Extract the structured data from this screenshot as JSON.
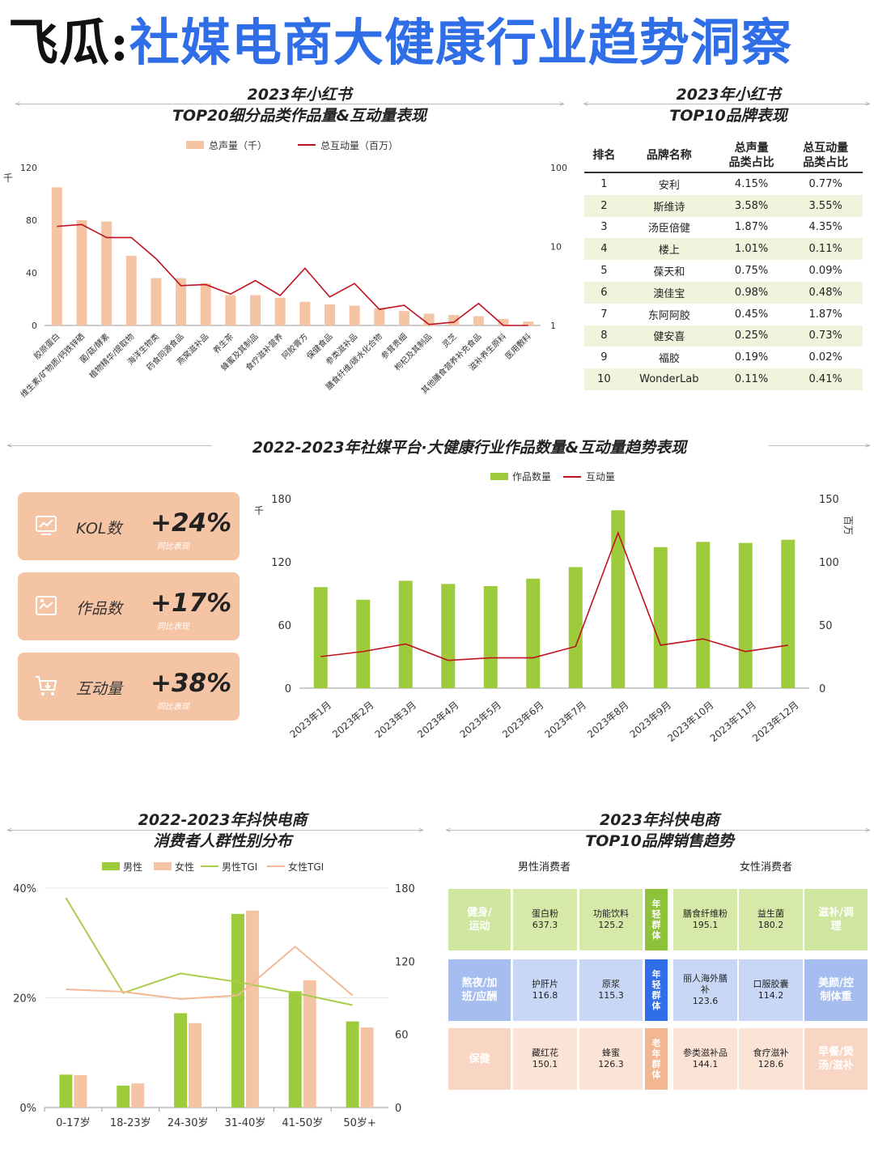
{
  "header": {
    "brand": "飞瓜:",
    "title": "社媒电商大健康行业趋势洞察"
  },
  "sections": {
    "s1": {
      "line1": "2023年小红书",
      "line2": "TOP20细分品类作品量&互动量表现"
    },
    "s2": {
      "line1": "2023年小红书",
      "line2": "TOP10品牌表现"
    },
    "s3": {
      "line1": "2022-2023年社媒平台·大健康行业作品数量&互动量趋势表现"
    },
    "s4": {
      "line1": "2022-2023年抖快电商",
      "line2": "消费者人群性别分布"
    },
    "s5": {
      "line1": "2023年抖快电商",
      "line2": "TOP10品牌销售趋势"
    }
  },
  "chart_data": [
    {
      "type": "bar",
      "legend": [
        "总声量（千）",
        "总互动量（百万）"
      ],
      "ylabel": "千",
      "ylim": [
        0,
        120
      ],
      "y_ticks": [
        0,
        40,
        80,
        120
      ],
      "y2_ticks": [
        "1",
        "10",
        "100"
      ],
      "y2_scale": "log",
      "categories": [
        "胶原蛋白",
        "维生素/矿物质/钙铁锌硒",
        "菌/菇/酵素",
        "植物精华/提取物",
        "海洋生物类",
        "药食同源食品",
        "燕窝滋补品",
        "养生茶",
        "蜂蜜及其制品",
        "食疗滋补营养",
        "阿胶膏方",
        "保健食品",
        "参类滋补品",
        "膳食纤维/碳水化合物",
        "参茸贵细",
        "枸杞及其制品",
        "灵芝",
        "其他膳食营养补充食品",
        "滋补养生原料",
        "医用敷料"
      ],
      "series": [
        {
          "name": "总声量（千）",
          "values": [
            105,
            80,
            79,
            53,
            36,
            36,
            32,
            23,
            23,
            21,
            18,
            16,
            15,
            13,
            11,
            9,
            8,
            7,
            5,
            3
          ]
        },
        {
          "name": "总互动量（百万）",
          "values": [
            18,
            19,
            13,
            13,
            7,
            3.2,
            3.3,
            2.5,
            3.7,
            2.4,
            5.3,
            2.3,
            3.4,
            1.6,
            1.8,
            1.03,
            1.1,
            1.9,
            1,
            1
          ]
        }
      ]
    },
    {
      "type": "table",
      "columns": [
        "排名",
        "品牌名称",
        "总声量\n品类占比",
        "总互动量\n品类占比"
      ],
      "rows": [
        [
          "1",
          "安利",
          "4.15%",
          "0.77%"
        ],
        [
          "2",
          "斯维诗",
          "3.58%",
          "3.55%"
        ],
        [
          "3",
          "汤臣倍健",
          "1.87%",
          "4.35%"
        ],
        [
          "4",
          "楼上",
          "1.01%",
          "0.11%"
        ],
        [
          "5",
          "葆天和",
          "0.75%",
          "0.09%"
        ],
        [
          "6",
          "澳佳宝",
          "0.98%",
          "0.48%"
        ],
        [
          "7",
          "东阿阿胶",
          "0.45%",
          "1.87%"
        ],
        [
          "8",
          "健安喜",
          "0.25%",
          "0.73%"
        ],
        [
          "9",
          "福胶",
          "0.19%",
          "0.02%"
        ],
        [
          "10",
          "WonderLab",
          "0.11%",
          "0.41%"
        ]
      ]
    },
    {
      "type": "bar",
      "legend": [
        "作品数量",
        "互动量"
      ],
      "ylabel": "千",
      "y2label": "百万",
      "ylim": [
        0,
        180
      ],
      "y2lim": [
        0,
        150
      ],
      "y_ticks": [
        0,
        60,
        120,
        180
      ],
      "y2_ticks": [
        0,
        50,
        100,
        150
      ],
      "categories": [
        "2023年1月",
        "2023年2月",
        "2023年3月",
        "2023年4月",
        "2023年5月",
        "2023年6月",
        "2023年7月",
        "2023年8月",
        "2023年9月",
        "2023年10月",
        "2023年11月",
        "2023年12月"
      ],
      "series": [
        {
          "name": "作品数量",
          "values": [
            96,
            84,
            102,
            99,
            97,
            104,
            115,
            169,
            134,
            139,
            138,
            141
          ]
        },
        {
          "name": "互动量",
          "values": [
            25,
            29,
            35,
            22,
            24,
            24,
            33,
            123,
            34,
            39,
            29,
            34
          ]
        }
      ]
    },
    {
      "type": "bar",
      "legend": [
        "男性",
        "女性",
        "男性TGI",
        "女性TGI"
      ],
      "y_ticks": [
        "0%",
        "20%",
        "40%"
      ],
      "ylim": [
        0,
        40
      ],
      "y2lim": [
        0,
        180
      ],
      "y2_ticks": [
        0,
        60,
        120,
        180
      ],
      "categories": [
        "0-17岁",
        "18-23岁",
        "24-30岁",
        "31-40岁",
        "41-50岁",
        "50岁+"
      ],
      "series": [
        {
          "name": "男性",
          "values": [
            6,
            4,
            17.2,
            35.3,
            21.2,
            15.7
          ]
        },
        {
          "name": "女性",
          "values": [
            5.9,
            4.4,
            15.4,
            35.9,
            23.2,
            14.6
          ]
        },
        {
          "name": "男性TGI",
          "values": [
            172,
            94,
            110,
            103,
            94,
            84
          ]
        },
        {
          "name": "女性TGI",
          "values": [
            97,
            95,
            89,
            92,
            132,
            92
          ]
        }
      ]
    }
  ],
  "kpis": [
    {
      "label": "KOL数",
      "value": "+24%",
      "sub": "同比表现"
    },
    {
      "label": "作品数",
      "value": "+17%",
      "sub": "同比表现"
    },
    {
      "label": "互动量",
      "value": "+38%",
      "sub": "同比表现"
    }
  ],
  "sales_grid": {
    "male_header": "男性消费者",
    "female_header": "女性消费者",
    "rows": [
      {
        "left_cat": "健身/\n运动",
        "m1": {
          "name": "蛋白粉",
          "val": "637.3"
        },
        "m2": {
          "name": "功能饮料",
          "val": "125.2"
        },
        "mid": "年\n轻\n群\n体",
        "f1": {
          "name": "膳食纤维粉",
          "val": "195.1"
        },
        "f2": {
          "name": "益生菌",
          "val": "180.2"
        },
        "right_cat": "滋补/调\n理"
      },
      {
        "left_cat": "熬夜/加\n班/应酬",
        "m1": {
          "name": "护肝片",
          "val": "116.8"
        },
        "m2": {
          "name": "原浆",
          "val": "115.3"
        },
        "mid": "年\n轻\n群\n体",
        "f1": {
          "name": "丽人海外膳\n补",
          "val": "123.6"
        },
        "f2": {
          "name": "口服胶囊",
          "val": "114.2"
        },
        "right_cat": "美颜/控\n制体重"
      },
      {
        "left_cat": "保健",
        "m1": {
          "name": "藏红花",
          "val": "150.1"
        },
        "m2": {
          "name": "蜂蜜",
          "val": "126.3"
        },
        "mid": "老\n年\n群\n体",
        "f1": {
          "name": "参类滋补品",
          "val": "144.1"
        },
        "f2": {
          "name": "食疗滋补",
          "val": "128.6"
        },
        "right_cat": "早餐/煲\n汤/滋补"
      }
    ]
  },
  "colors": {
    "peach": "#f5c4a5",
    "red": "#c0111f",
    "green": "#9dcb3c",
    "blue": "#2f6ee6",
    "light_green": "#d6e9a8",
    "light_blue": "#c7d7f5",
    "light_peach": "#fbe3d6"
  }
}
